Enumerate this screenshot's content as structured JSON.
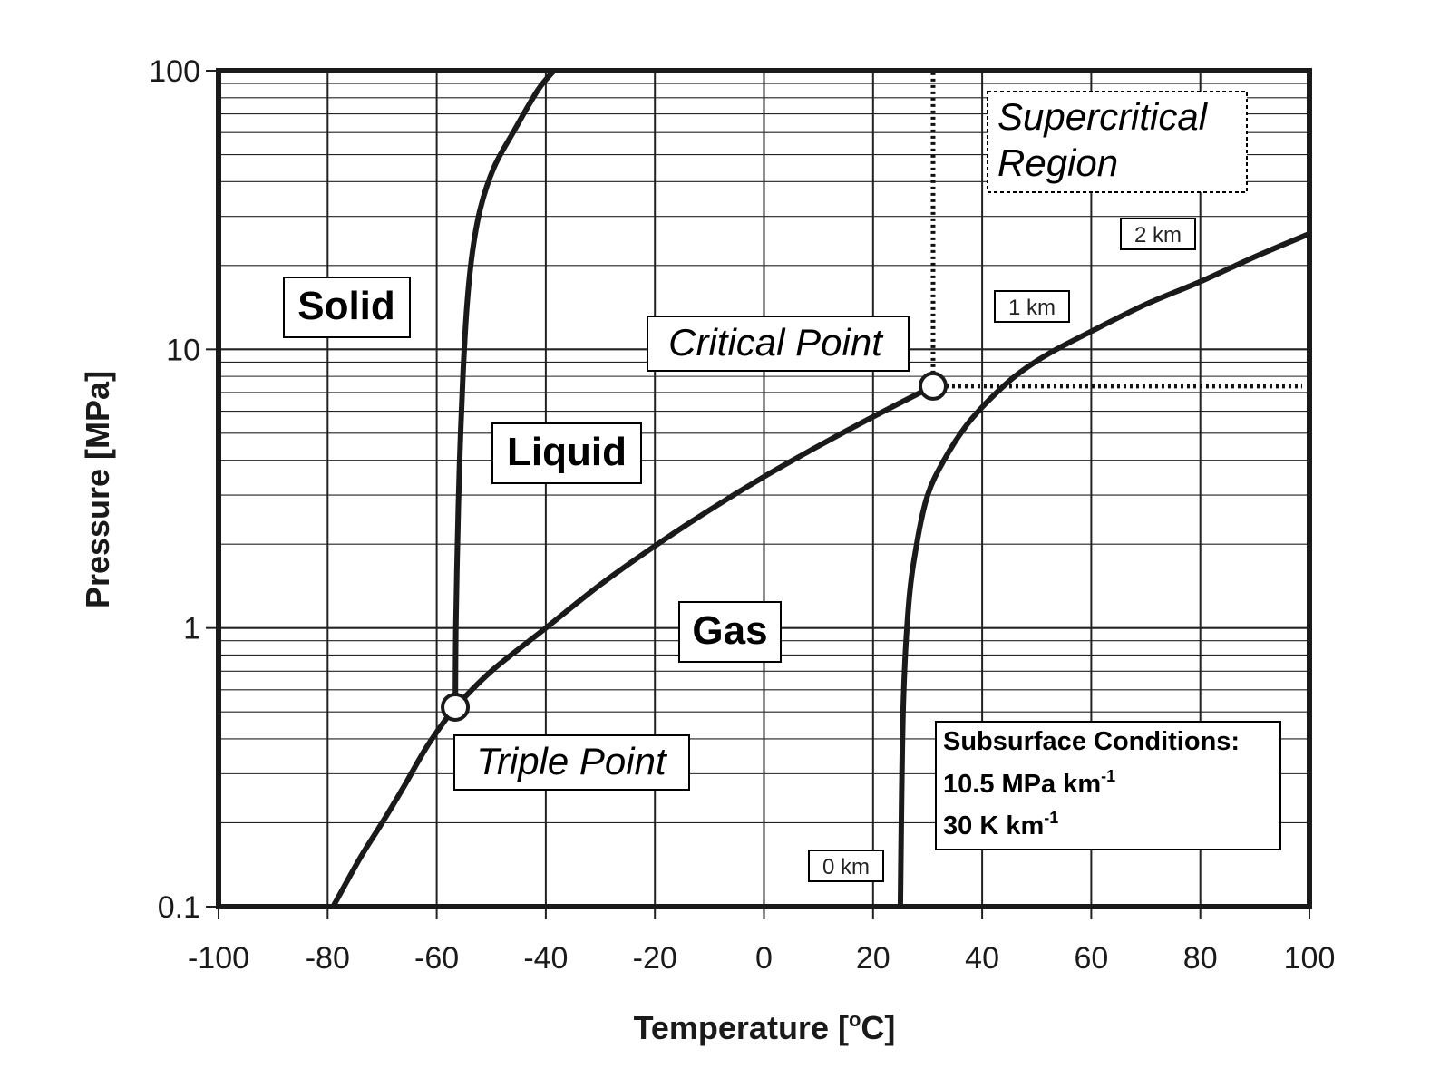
{
  "chart_data": {
    "type": "line",
    "xlabel": "Temperature [°C]",
    "xlabel_main": "Temperature [",
    "xlabel_deg": "o",
    "xlabel_unit": "C]",
    "ylabel": "Pressure [MPa]",
    "y_scale": "log",
    "xlim": [
      -100,
      100
    ],
    "ylim": [
      0.1,
      100
    ],
    "x_ticks": [
      "-100",
      "-80",
      "-60",
      "-40",
      "-20",
      "0",
      "20",
      "40",
      "60",
      "80",
      "100"
    ],
    "y_ticks": [
      "0.1",
      "1",
      "10",
      "100"
    ],
    "grid": true,
    "series": [
      {
        "role": "sublimation",
        "x": [
          -79,
          -74,
          -70,
          -66,
          -62,
          -58,
          -56.6
        ],
        "y": [
          0.1,
          0.15,
          0.2,
          0.27,
          0.37,
          0.48,
          0.52
        ]
      },
      {
        "role": "melting",
        "x": [
          -56.6,
          -56.5,
          -56.2,
          -55.8,
          -55.2,
          -54.5,
          -53.5,
          -52,
          -49.5,
          -46,
          -41.5,
          -38.5
        ],
        "y": [
          0.52,
          1,
          2,
          4,
          8,
          14,
          22,
          32,
          45,
          60,
          85,
          100
        ]
      },
      {
        "role": "vaporization",
        "x": [
          -56.6,
          -50,
          -40,
          -30,
          -20,
          -10,
          0,
          10,
          20,
          31
        ],
        "y": [
          0.52,
          0.7,
          1.0,
          1.43,
          1.97,
          2.65,
          3.49,
          4.5,
          5.73,
          7.38
        ]
      },
      {
        "role": "subsurface",
        "x": [
          25,
          25.5,
          26.5,
          28,
          30,
          33,
          37,
          41,
          46,
          52,
          60,
          70,
          80,
          90,
          100
        ],
        "y": [
          0.1,
          0.5,
          1.2,
          2.0,
          3.0,
          4.0,
          5.3,
          6.5,
          8.0,
          9.6,
          11.6,
          14.5,
          17.5,
          21.5,
          26
        ]
      }
    ],
    "critical_point": {
      "x": 31,
      "y": 7.38
    },
    "triple_point": {
      "x": -56.6,
      "y": 0.52
    },
    "region_labels": {
      "solid": "Solid",
      "liquid": "Liquid",
      "gas": "Gas",
      "supercritical_line1": "Supercritical",
      "supercritical_line2": "Region"
    },
    "point_labels": {
      "critical": "Critical Point",
      "triple": "Triple Point"
    },
    "depth_labels": {
      "d0": "0 km",
      "d1": "1 km",
      "d2": "2 km"
    },
    "subsurface_box": {
      "title": "Subsurface Conditions:",
      "line1_main": "10.5 MPa km",
      "line1_sup": "-1",
      "line2_main": "30 K km",
      "line2_sup": "-1"
    }
  }
}
